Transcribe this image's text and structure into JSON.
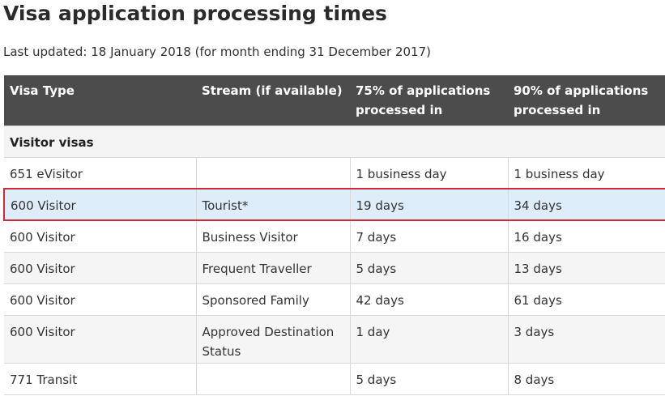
{
  "page": {
    "title": "Visa application processing times",
    "last_updated": "Last updated: 18 January 2018 (for month ending 31 December 2017)"
  },
  "table": {
    "headers": {
      "visa_type": "Visa Type",
      "stream": "Stream (if available)",
      "p75": "75% of applications processed in",
      "p90": "90% of applications processed in"
    },
    "group_label": "Visitor visas",
    "rows": [
      {
        "visa_type": "651 eVisitor",
        "stream": "",
        "p75": "1 business day",
        "p90": "1 business day",
        "highlighted": false
      },
      {
        "visa_type": "600 Visitor",
        "stream": "Tourist*",
        "p75": "19 days",
        "p90": "34 days",
        "highlighted": true
      },
      {
        "visa_type": "600 Visitor",
        "stream": "Business Visitor",
        "p75": "7 days",
        "p90": "16 days",
        "highlighted": false
      },
      {
        "visa_type": "600 Visitor",
        "stream": "Frequent Traveller",
        "p75": "5 days",
        "p90": "13 days",
        "highlighted": false
      },
      {
        "visa_type": "600 Visitor",
        "stream": "Sponsored Family",
        "p75": "42 days",
        "p90": "61 days",
        "highlighted": false
      },
      {
        "visa_type": "600 Visitor",
        "stream": "Approved Destination Status",
        "p75": "1 day",
        "p90": "3 days",
        "highlighted": false
      },
      {
        "visa_type": "771 Transit",
        "stream": "",
        "p75": "5 days",
        "p90": "8 days",
        "highlighted": false
      }
    ]
  },
  "colors": {
    "header_bg": "#4c4c4c",
    "highlight_bg": "#deedfa",
    "highlight_border": "#cc2a36"
  }
}
